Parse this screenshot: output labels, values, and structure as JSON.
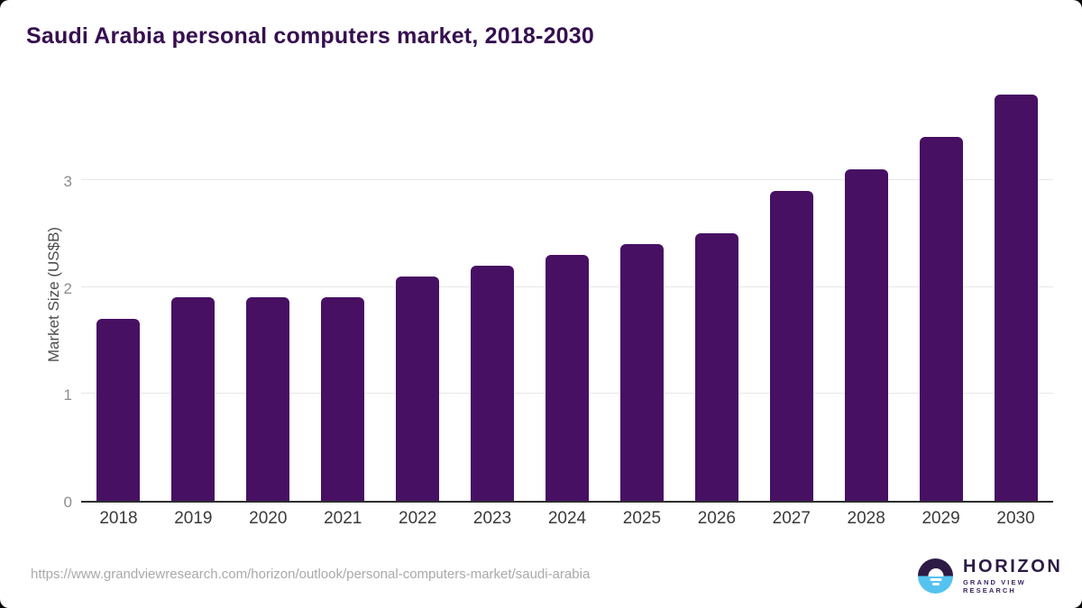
{
  "title": "Saudi Arabia personal computers market, 2018-2030",
  "footer": {
    "source_url": "https://www.grandviewresearch.com/horizon/outlook/personal-computers-market/saudi-arabia",
    "logo": {
      "name": "HORIZON",
      "subtitle": "GRAND VIEW RESEARCH"
    }
  },
  "colors": {
    "bar": "#471063",
    "title_text": "#360f50",
    "axis_line": "#2d2d2d",
    "gridline": "#e7e7e7",
    "y_tick_label": "#8c8c8c",
    "x_tick_label": "#3a3a3a",
    "y_axis_title": "#4d4d4d",
    "url_text": "#a9a9a9",
    "logo_purple": "#2d1a45",
    "logo_blue": "#55c3ef"
  },
  "chart_data": {
    "type": "bar",
    "title": "Saudi Arabia personal computers market, 2018-2030",
    "categories": [
      "2018",
      "2019",
      "2020",
      "2021",
      "2022",
      "2023",
      "2024",
      "2025",
      "2026",
      "2027",
      "2028",
      "2029",
      "2030"
    ],
    "values": [
      1.7,
      1.9,
      1.9,
      1.9,
      2.1,
      2.2,
      2.3,
      2.4,
      2.5,
      2.9,
      3.1,
      3.4,
      3.8
    ],
    "xlabel": "",
    "ylabel": "Market Size (US$B)",
    "ylim": [
      0,
      3.9
    ],
    "yticks": [
      0,
      1,
      2,
      3
    ],
    "grid": true,
    "legend_position": "none"
  }
}
